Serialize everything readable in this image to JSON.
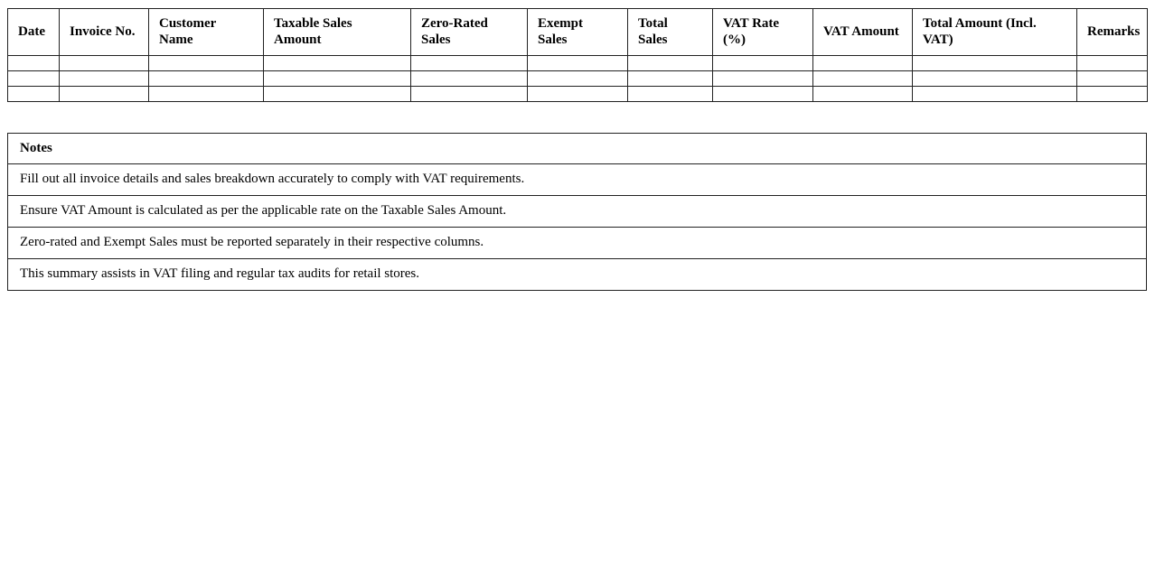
{
  "vat_table": {
    "headers": [
      "Date",
      "Invoice No.",
      "Customer Name",
      "Taxable Sales Amount",
      "Zero-Rated Sales",
      "Exempt Sales",
      "Total Sales",
      "VAT Rate (%)",
      "VAT Amount",
      "Total Amount (Incl. VAT)",
      "Remarks"
    ],
    "empty_row_count": 3
  },
  "notes": {
    "title": "Notes",
    "items": [
      "Fill out all invoice details and sales breakdown accurately to comply with VAT requirements.",
      "Ensure VAT Amount is calculated as per the applicable rate on the Taxable Sales Amount.",
      "Zero-rated and Exempt Sales must be reported separately in their respective columns.",
      "This summary assists in VAT filing and regular tax audits for retail stores."
    ]
  },
  "colors": {
    "border": "#222222",
    "background": "#ffffff",
    "text": "#000000"
  }
}
